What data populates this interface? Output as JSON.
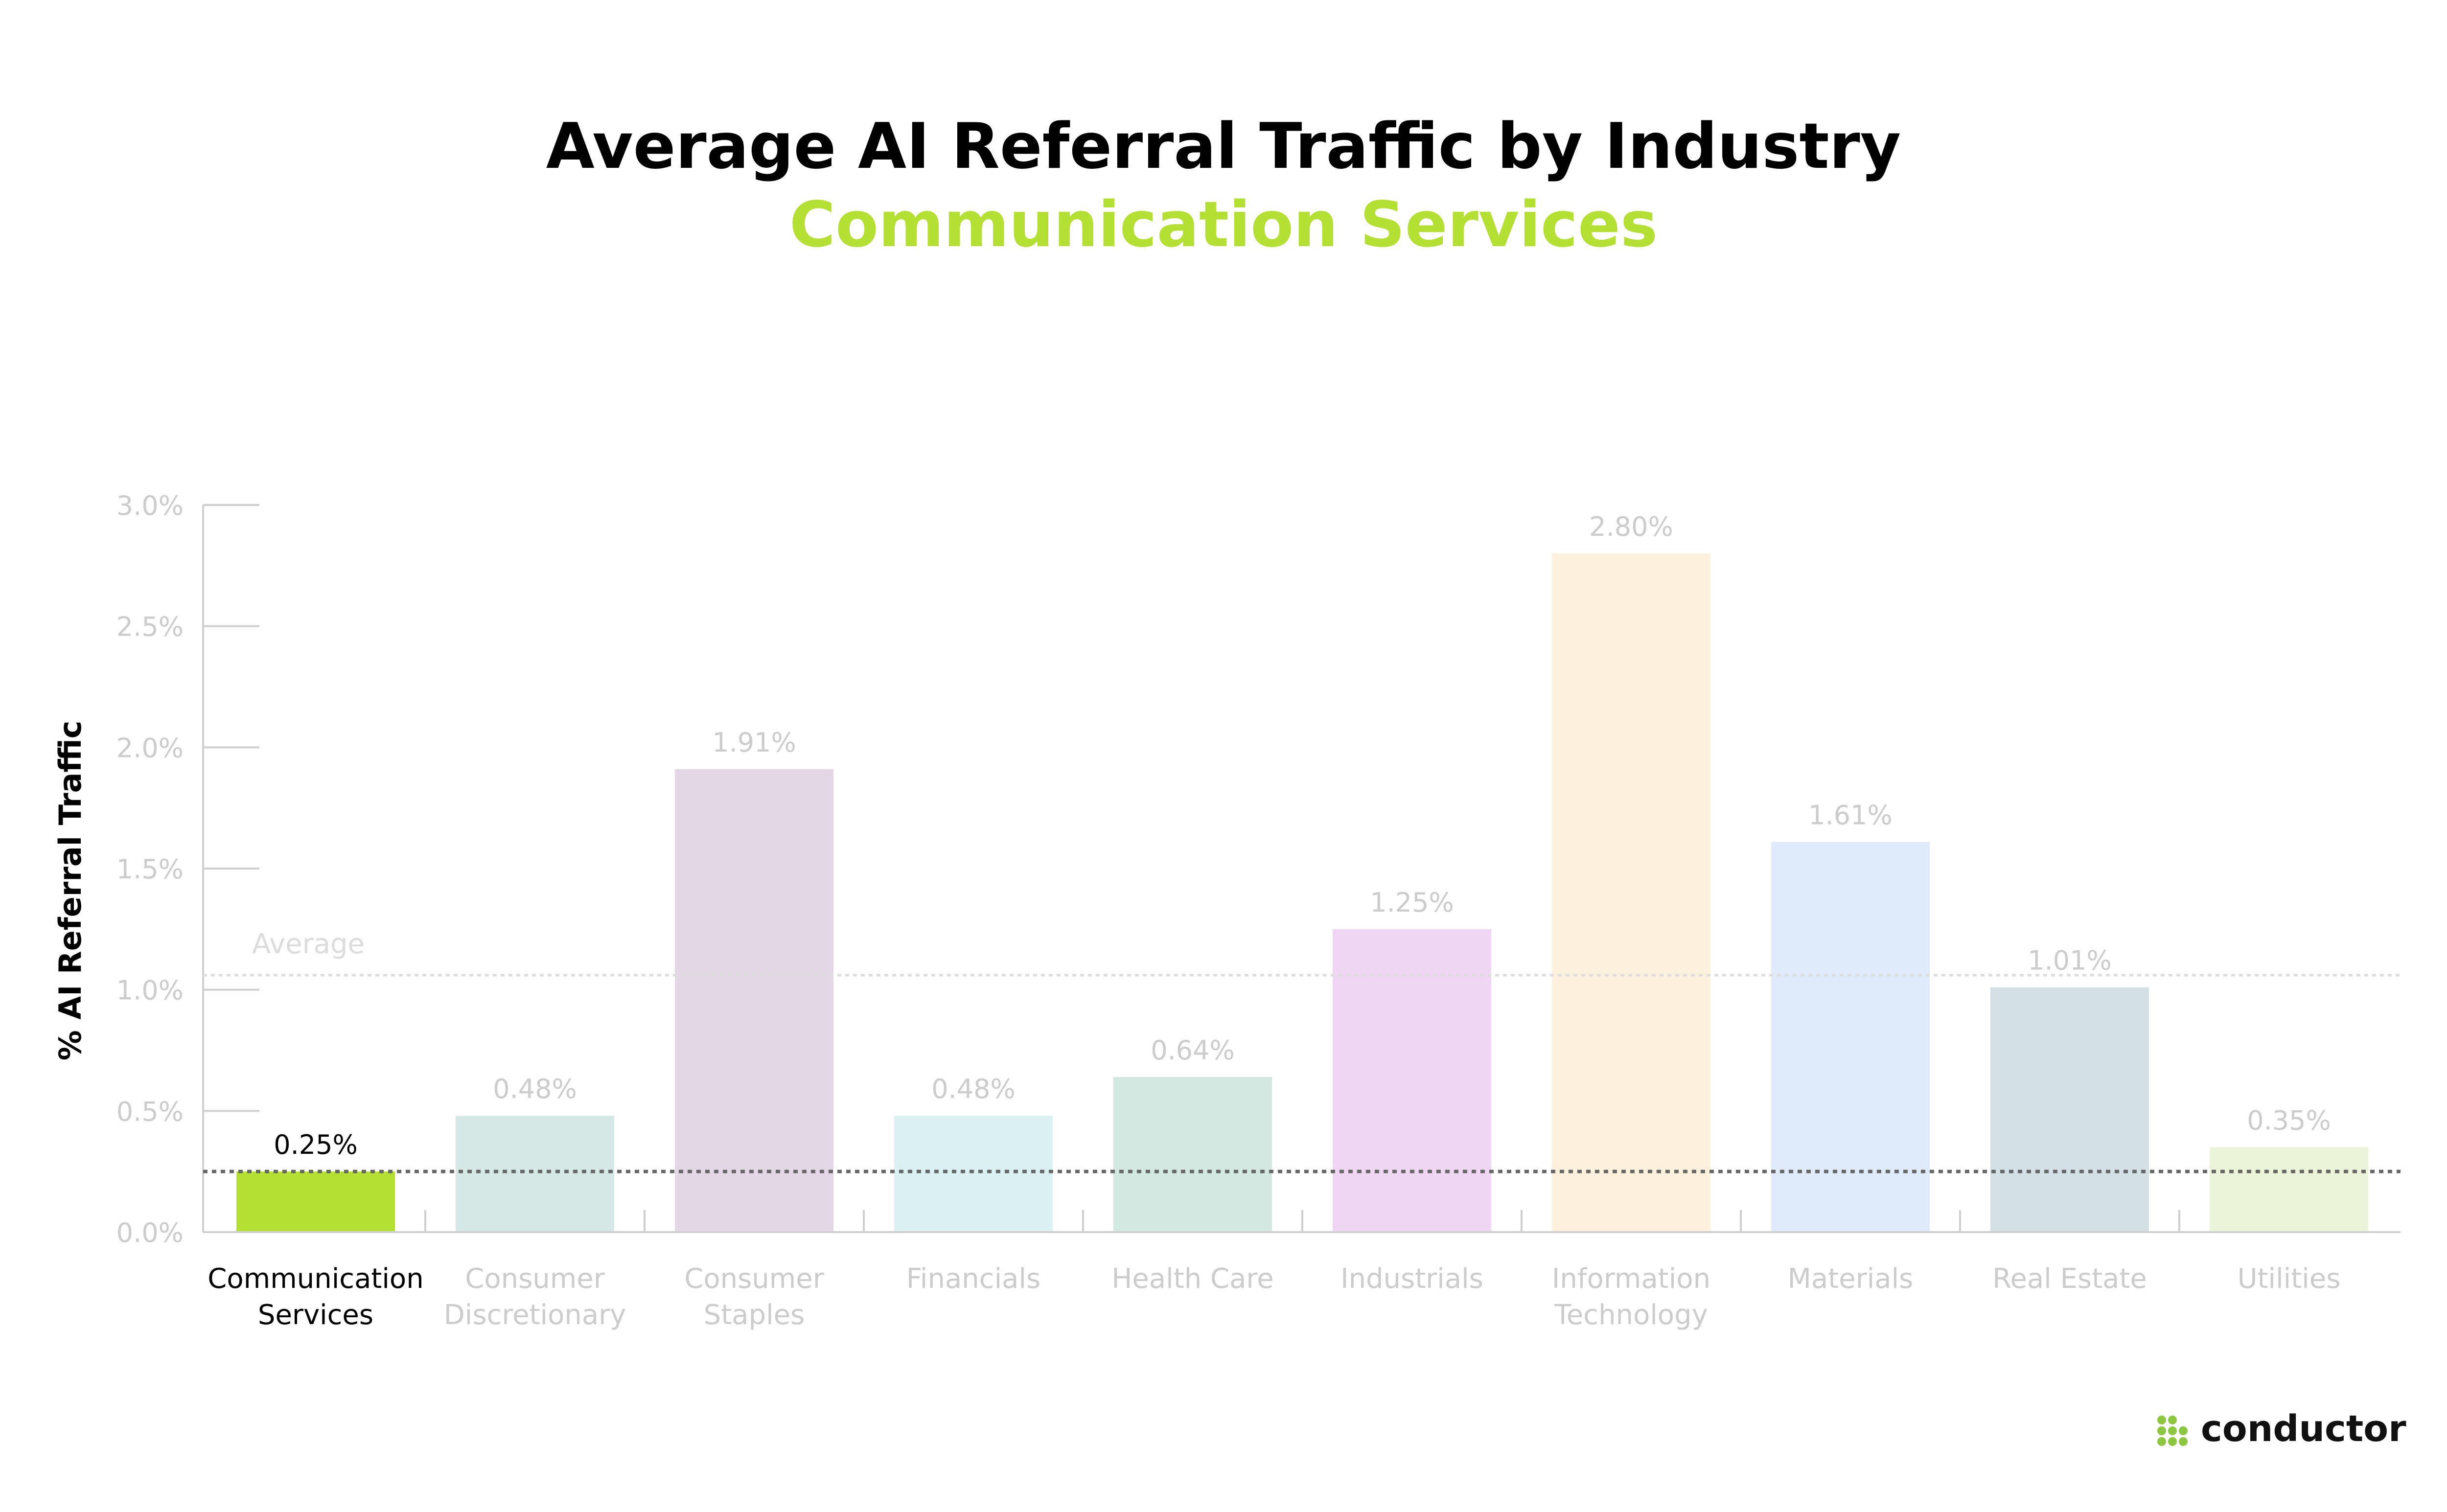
{
  "chart_data": {
    "type": "bar",
    "title": "Average AI Referral Traffic by Industry",
    "subtitle": "Communication Services",
    "ylabel": "% AI Referral Traffic",
    "xlabel": "",
    "ylim": [
      0,
      3.0
    ],
    "yticks": [
      0,
      0.5,
      1.0,
      1.5,
      2.0,
      2.5,
      3.0
    ],
    "ytick_labels": [
      "0.0%",
      "0.5%",
      "1.0%",
      "1.5%",
      "2.0%",
      "2.5%",
      "3.0%"
    ],
    "categories": [
      [
        "Communication",
        "Services"
      ],
      [
        "Consumer",
        "Discretionary"
      ],
      [
        "Consumer",
        "Staples"
      ],
      [
        "Financials"
      ],
      [
        "Health Care"
      ],
      [
        "Industrials"
      ],
      [
        "Information",
        "Technology"
      ],
      [
        "Materials"
      ],
      [
        "Real Estate"
      ],
      [
        "Utilities"
      ]
    ],
    "values": [
      0.25,
      0.48,
      1.91,
      0.48,
      0.64,
      1.25,
      2.8,
      1.61,
      1.01,
      0.35
    ],
    "value_labels": [
      "0.25%",
      "0.48%",
      "1.91%",
      "0.48%",
      "0.64%",
      "1.25%",
      "2.80%",
      "1.61%",
      "1.01%",
      "0.35%"
    ],
    "bar_colors": [
      "#b4e033",
      "#d5e8e5",
      "#e3d7e6",
      "#dbf1f1",
      "#d3e8e0",
      "#efd6f2",
      "#fdf0dc",
      "#dfeafa",
      "#d3e1e4",
      "#ebf3d8"
    ],
    "highlight_index": 0,
    "average": {
      "label": "Average",
      "value": 1.06
    },
    "highlight_line_value": 0.25,
    "grid": false,
    "legend": "none"
  },
  "colors": {
    "accent": "#b4e033",
    "muted_text": "#cccccc",
    "axis": "#cfcfcf",
    "highlight_line": "#666666",
    "average_line": "#dddddd",
    "logo_dots": "#8dc63f"
  },
  "logo": {
    "text": "conductor",
    "icon": "conductor-dots-icon"
  }
}
